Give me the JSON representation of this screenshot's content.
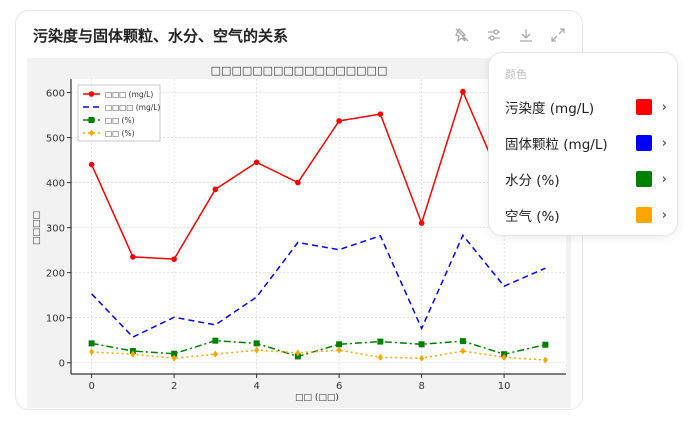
{
  "card": {
    "title": "污染度与固体颗粒、水分、空气的关系"
  },
  "toolbar": {
    "icons": [
      "pin-off-icon",
      "sliders-icon",
      "download-icon",
      "expand-icon"
    ]
  },
  "chart_data": {
    "type": "line",
    "title": "□□□□□□□□□□□□□□□□□",
    "xlabel": "□□ (□□)",
    "ylabel": "□□□□",
    "x": [
      0,
      1,
      2,
      3,
      4,
      5,
      6,
      7,
      8,
      9,
      10,
      11
    ],
    "xlim": [
      -0.5,
      11.5
    ],
    "ylim": [
      -25,
      630
    ],
    "xticks": [
      0,
      2,
      4,
      6,
      8,
      10
    ],
    "yticks": [
      0,
      100,
      200,
      300,
      400,
      500,
      600
    ],
    "grid": true,
    "legend": "top-left",
    "series": [
      {
        "name": "□□□ (mg/L)",
        "color": "#ff0000",
        "style": "solid",
        "marker": "circle",
        "values": [
          440,
          235,
          230,
          385,
          445,
          400,
          537,
          552,
          310,
          602,
          390,
          440
        ]
      },
      {
        "name": "□□□□ (mg/L)",
        "color": "#0000ff",
        "style": "dashed",
        "marker": "none",
        "values": [
          153,
          57,
          101,
          84,
          146,
          267,
          251,
          282,
          76,
          283,
          170,
          210
        ]
      },
      {
        "name": "□□ (%)",
        "color": "#008000",
        "style": "dashdot",
        "marker": "square",
        "values": [
          43,
          26,
          20,
          49,
          43,
          14,
          41,
          47,
          41,
          48,
          19,
          40
        ]
      },
      {
        "name": "□□ (%)",
        "color": "#ffa500",
        "style": "dotted",
        "marker": "diamond",
        "values": [
          24,
          19,
          10,
          19,
          28,
          22,
          28,
          12,
          10,
          26,
          12,
          6
        ]
      }
    ]
  },
  "popup": {
    "header": "颜色",
    "items": [
      {
        "label": "污染度 (mg/L)",
        "color": "#ff0000"
      },
      {
        "label": "固体颗粒 (mg/L)",
        "color": "#0000ff"
      },
      {
        "label": "水分 (%)",
        "color": "#008000"
      },
      {
        "label": "空气 (%)",
        "color": "#ffa500"
      }
    ],
    "chevron": "›"
  }
}
